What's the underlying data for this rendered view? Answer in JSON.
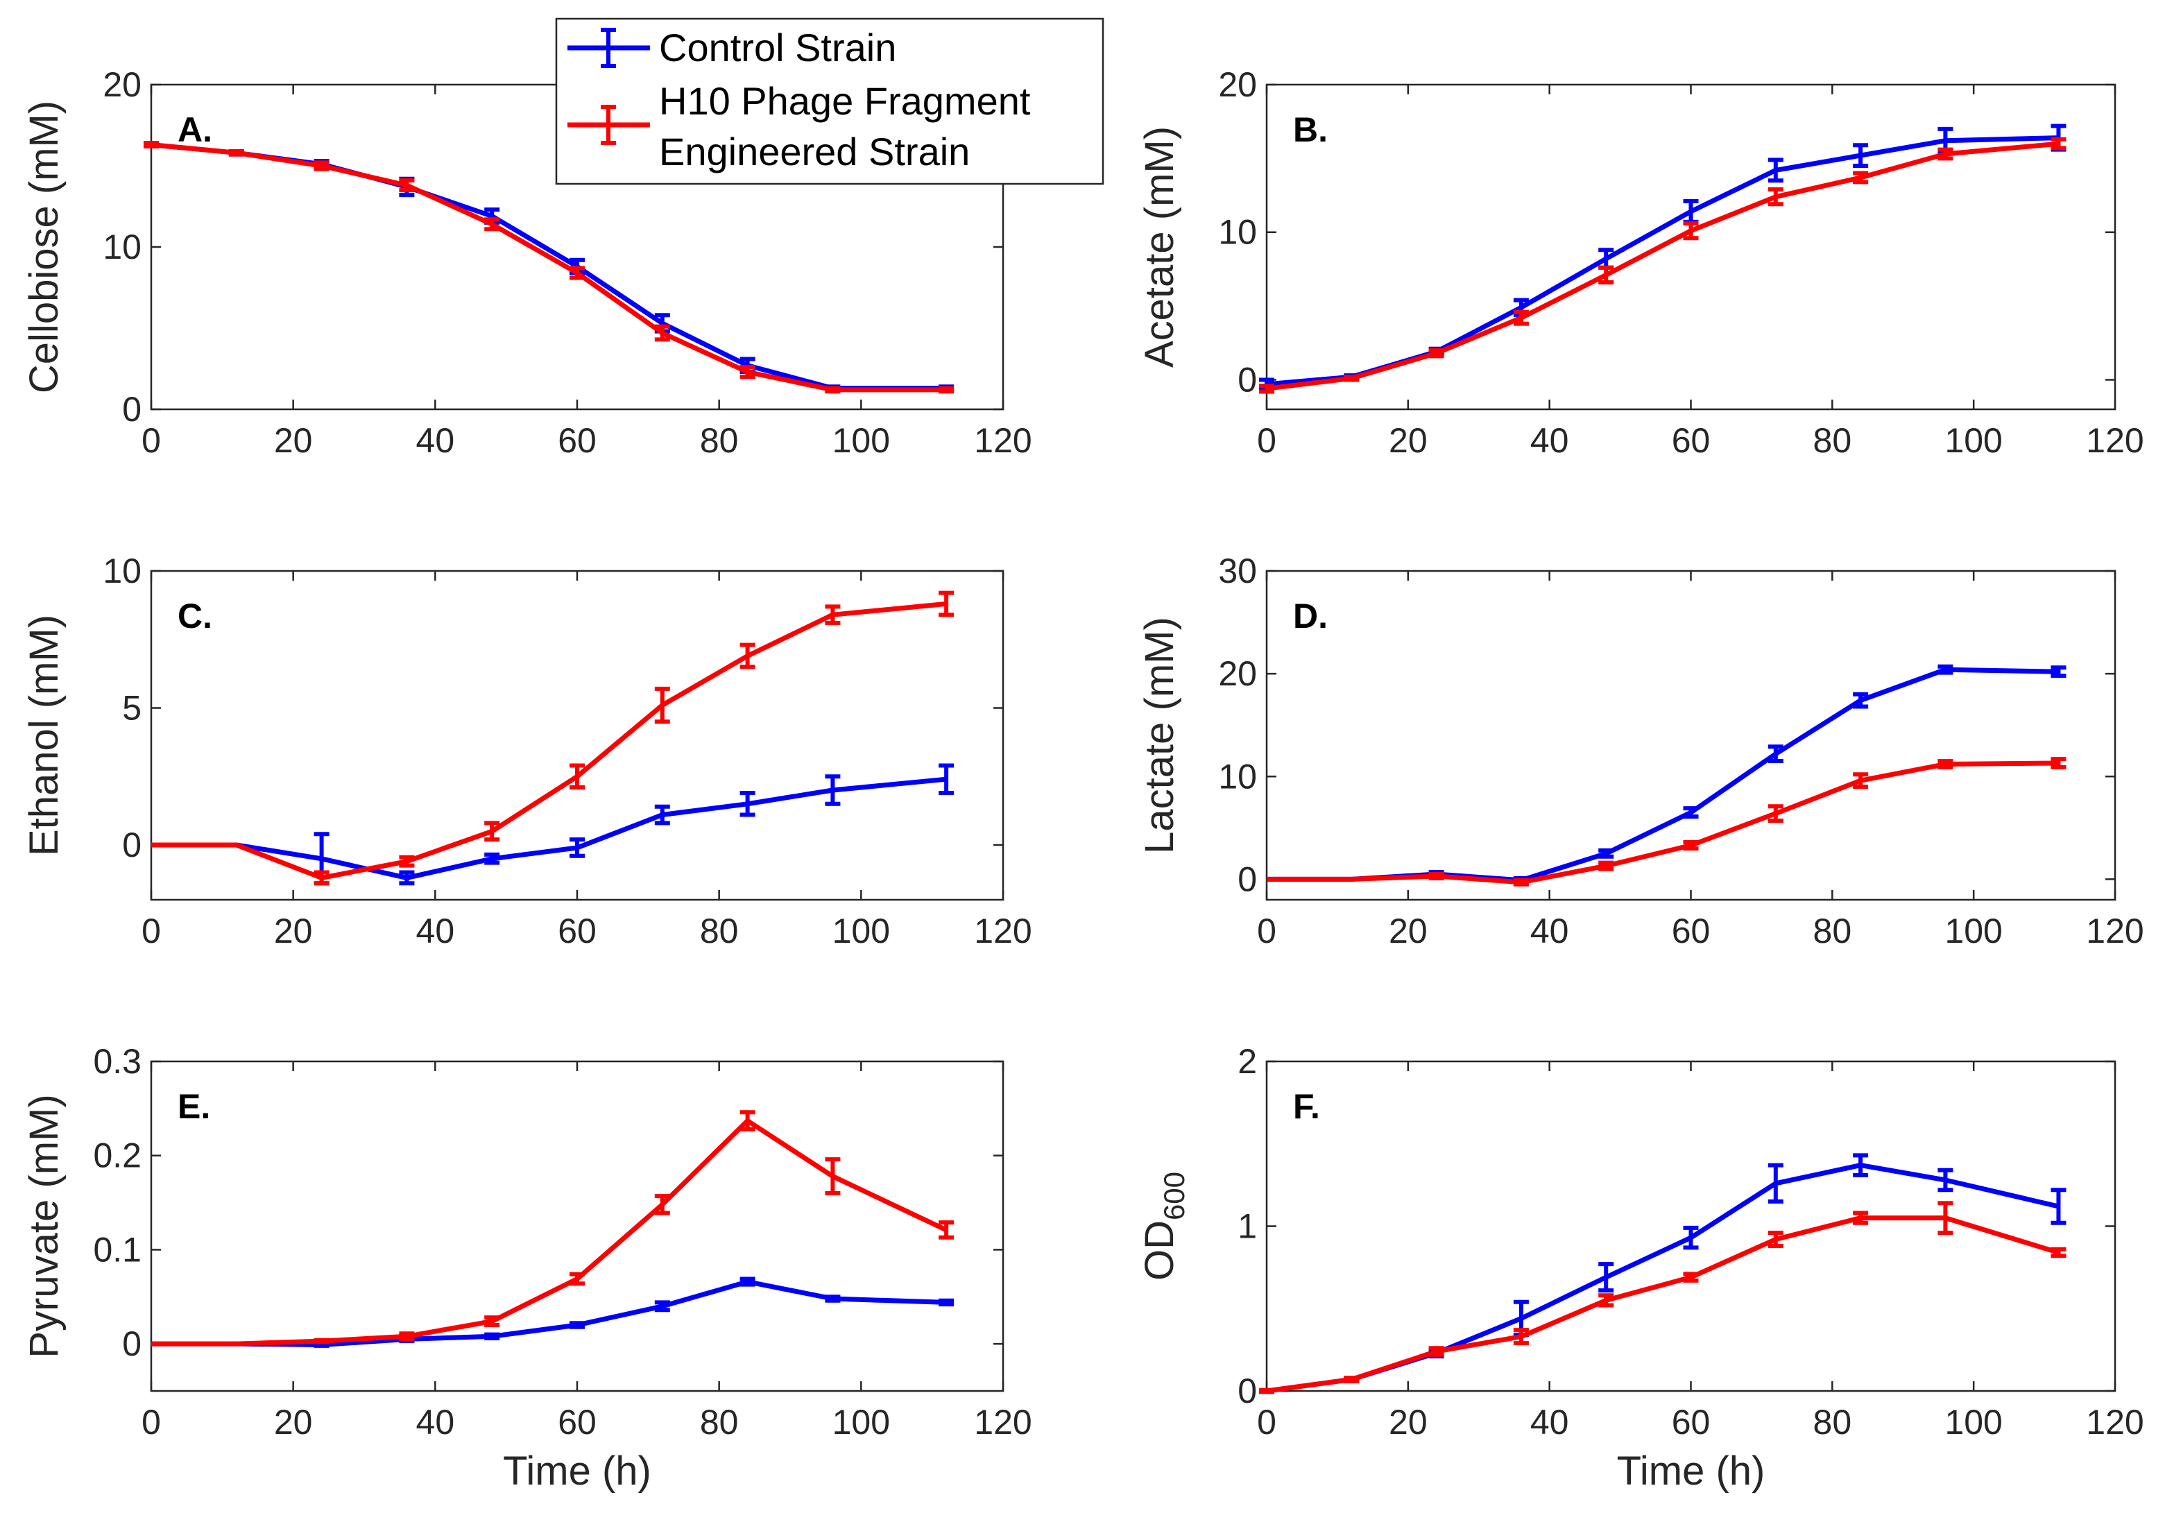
{
  "chart_data": {
    "type": "line",
    "legend": {
      "placement": "top-center",
      "entries": [
        {
          "name": "Control Strain",
          "lines": [
            "Control Strain"
          ],
          "color": "#0000ff"
        },
        {
          "name": "H10 Phage Fragment Engineered Strain",
          "lines": [
            "H10 Phage Fragment",
            "Engineered Strain"
          ],
          "color": "#ff0000"
        }
      ]
    },
    "panels": [
      {
        "id": "A",
        "letter": "A.",
        "ylabel": "Cellobiose (mM)",
        "xlabel": "",
        "xlim": [
          0,
          120
        ],
        "ylim": [
          0,
          20
        ],
        "xticks": [
          0,
          20,
          40,
          60,
          80,
          100,
          120
        ],
        "yticks": [
          0,
          10,
          20
        ],
        "series": [
          {
            "name": "Control Strain",
            "color": "#0000ff",
            "x": [
              0,
              12,
              24,
              36,
              48,
              60,
              72,
              84,
              96,
              112
            ],
            "y": [
              16.3,
              15.8,
              15.1,
              13.7,
              11.9,
              8.8,
              5.3,
              2.7,
              1.3,
              1.3
            ],
            "err": [
              0.1,
              0.1,
              0.2,
              0.5,
              0.4,
              0.4,
              0.5,
              0.4,
              0.1,
              0.1
            ]
          },
          {
            "name": "H10 Phage Fragment Engineered Strain",
            "color": "#ff0000",
            "x": [
              0,
              12,
              24,
              36,
              48,
              60,
              72,
              84,
              96,
              112
            ],
            "y": [
              16.3,
              15.8,
              15.0,
              13.8,
              11.4,
              8.4,
              4.7,
              2.3,
              1.2,
              1.2
            ],
            "err": [
              0.1,
              0.1,
              0.2,
              0.3,
              0.3,
              0.3,
              0.4,
              0.3,
              0.1,
              0.1
            ]
          }
        ]
      },
      {
        "id": "B",
        "letter": "B.",
        "ylabel": "Acetate (mM)",
        "xlabel": "",
        "xlim": [
          0,
          120
        ],
        "ylim": [
          -2,
          20
        ],
        "xticks": [
          0,
          20,
          40,
          60,
          80,
          100,
          120
        ],
        "yticks": [
          0,
          10,
          20
        ],
        "series": [
          {
            "name": "Control Strain",
            "color": "#0000ff",
            "x": [
              0,
              12,
              24,
              36,
              48,
              60,
              72,
              84,
              96,
              112
            ],
            "y": [
              -0.3,
              0.2,
              1.9,
              4.9,
              8.2,
              11.4,
              14.2,
              15.2,
              16.2,
              16.4
            ],
            "err": [
              0.3,
              0.1,
              0.2,
              0.5,
              0.6,
              0.7,
              0.7,
              0.7,
              0.8,
              0.8
            ]
          },
          {
            "name": "H10 Phage Fragment Engineered Strain",
            "color": "#ff0000",
            "x": [
              0,
              12,
              24,
              36,
              48,
              60,
              72,
              84,
              96,
              112
            ],
            "y": [
              -0.6,
              0.1,
              1.8,
              4.2,
              7.1,
              10.1,
              12.4,
              13.7,
              15.3,
              16.0
            ],
            "err": [
              0.2,
              0.1,
              0.2,
              0.4,
              0.5,
              0.5,
              0.5,
              0.3,
              0.3,
              0.3
            ]
          }
        ]
      },
      {
        "id": "C",
        "letter": "C.",
        "ylabel": "Ethanol (mM)",
        "xlabel": "",
        "xlim": [
          0,
          120
        ],
        "ylim": [
          -2,
          10
        ],
        "xticks": [
          0,
          20,
          40,
          60,
          80,
          100,
          120
        ],
        "yticks": [
          0,
          5,
          10
        ],
        "series": [
          {
            "name": "Control Strain",
            "color": "#0000ff",
            "x": [
              0,
              12,
              24,
              36,
              48,
              60,
              72,
              84,
              96,
              112
            ],
            "y": [
              0,
              0,
              -0.5,
              -1.2,
              -0.5,
              -0.1,
              1.1,
              1.5,
              2.0,
              2.4
            ],
            "err": [
              0,
              0,
              0.9,
              0.2,
              0.15,
              0.3,
              0.3,
              0.4,
              0.5,
              0.5
            ]
          },
          {
            "name": "H10 Phage Fragment Engineered Strain",
            "color": "#ff0000",
            "x": [
              0,
              12,
              24,
              36,
              48,
              60,
              72,
              84,
              96,
              112
            ],
            "y": [
              0,
              0,
              -1.2,
              -0.6,
              0.5,
              2.5,
              5.1,
              6.9,
              8.4,
              8.8
            ],
            "err": [
              0,
              0,
              0.2,
              0.15,
              0.3,
              0.4,
              0.6,
              0.4,
              0.3,
              0.4
            ]
          }
        ]
      },
      {
        "id": "D",
        "letter": "D.",
        "ylabel": "Lactate (mM)",
        "xlabel": "",
        "xlim": [
          0,
          120
        ],
        "ylim": [
          -2,
          30
        ],
        "xticks": [
          0,
          20,
          40,
          60,
          80,
          100,
          120
        ],
        "yticks": [
          0,
          10,
          20,
          30
        ],
        "series": [
          {
            "name": "Control Strain",
            "color": "#0000ff",
            "x": [
              0,
              12,
              24,
              36,
              48,
              60,
              72,
              84,
              96,
              112
            ],
            "y": [
              0,
              0,
              0.5,
              -0.1,
              2.5,
              6.5,
              12.2,
              17.4,
              20.4,
              20.2
            ],
            "err": [
              0,
              0,
              0.2,
              0.2,
              0.3,
              0.4,
              0.7,
              0.6,
              0.3,
              0.4
            ]
          },
          {
            "name": "H10 Phage Fragment Engineered Strain",
            "color": "#ff0000",
            "x": [
              0,
              12,
              24,
              36,
              48,
              60,
              72,
              84,
              96,
              112
            ],
            "y": [
              0,
              0,
              0.3,
              -0.3,
              1.3,
              3.3,
              6.4,
              9.6,
              11.2,
              11.3
            ],
            "err": [
              0,
              0,
              0.2,
              0.2,
              0.3,
              0.3,
              0.7,
              0.6,
              0.3,
              0.4
            ]
          }
        ]
      },
      {
        "id": "E",
        "letter": "E.",
        "ylabel": "Pyruvate (mM)",
        "xlabel": "Time (h)",
        "xlim": [
          0,
          120
        ],
        "ylim": [
          -0.05,
          0.3
        ],
        "xticks": [
          0,
          20,
          40,
          60,
          80,
          100,
          120
        ],
        "yticks": [
          0,
          0.1,
          0.2,
          0.3
        ],
        "series": [
          {
            "name": "Control Strain",
            "color": "#0000ff",
            "x": [
              0,
              12,
              24,
              36,
              48,
              60,
              72,
              84,
              96,
              112
            ],
            "y": [
              0,
              0,
              -0.001,
              0.005,
              0.008,
              0.02,
              0.04,
              0.066,
              0.048,
              0.044
            ],
            "err": [
              0,
              0,
              0.001,
              0.002,
              0.002,
              0.002,
              0.004,
              0.003,
              0.002,
              0.002
            ]
          },
          {
            "name": "H10 Phage Fragment Engineered Strain",
            "color": "#ff0000",
            "x": [
              0,
              12,
              24,
              36,
              48,
              60,
              72,
              84,
              96,
              112
            ],
            "y": [
              0,
              0,
              0.003,
              0.008,
              0.024,
              0.069,
              0.148,
              0.237,
              0.178,
              0.121
            ],
            "err": [
              0,
              0,
              0.001,
              0.003,
              0.004,
              0.005,
              0.009,
              0.009,
              0.018,
              0.008
            ]
          }
        ]
      },
      {
        "id": "F",
        "letter": "F.",
        "ylabel": "OD",
        "ylabel_sub": "600",
        "xlabel": "Time (h)",
        "xlim": [
          0,
          120
        ],
        "ylim": [
          0,
          2
        ],
        "xticks": [
          0,
          20,
          40,
          60,
          80,
          100,
          120
        ],
        "yticks": [
          0,
          1,
          2
        ],
        "series": [
          {
            "name": "Control Strain",
            "color": "#0000ff",
            "x": [
              0,
              12,
              24,
              36,
              48,
              60,
              72,
              84,
              96,
              112
            ],
            "y": [
              0.0,
              0.07,
              0.23,
              0.44,
              0.69,
              0.93,
              1.26,
              1.37,
              1.28,
              1.12
            ],
            "err": [
              0.005,
              0.01,
              0.02,
              0.1,
              0.08,
              0.06,
              0.11,
              0.06,
              0.06,
              0.1
            ]
          },
          {
            "name": "H10 Phage Fragment Engineered Strain",
            "color": "#ff0000",
            "x": [
              0,
              12,
              24,
              36,
              48,
              60,
              72,
              84,
              96,
              112
            ],
            "y": [
              0.0,
              0.07,
              0.24,
              0.33,
              0.55,
              0.69,
              0.92,
              1.05,
              1.05,
              0.84
            ],
            "err": [
              0.005,
              0.01,
              0.02,
              0.04,
              0.03,
              0.02,
              0.04,
              0.03,
              0.09,
              0.02
            ]
          }
        ]
      }
    ]
  }
}
